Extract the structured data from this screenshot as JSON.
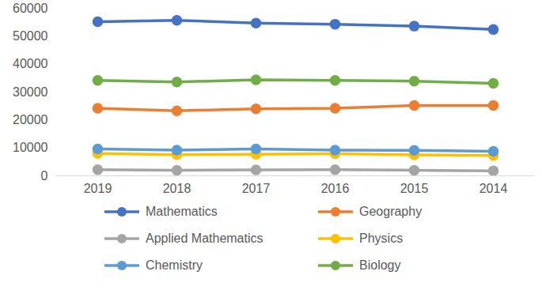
{
  "chart_data": {
    "type": "line",
    "categories": [
      "2019",
      "2018",
      "2017",
      "2016",
      "2015",
      "2014"
    ],
    "series": [
      {
        "name": "Mathematics",
        "color": "#4472c4",
        "values": [
          55200,
          55700,
          54700,
          54300,
          53600,
          52400
        ]
      },
      {
        "name": "Geography",
        "color": "#ed7d31",
        "values": [
          24200,
          23300,
          24000,
          24200,
          25200,
          25200
        ]
      },
      {
        "name": "Applied Mathematics",
        "color": "#a5a5a5",
        "values": [
          2200,
          2000,
          2100,
          2200,
          2000,
          1800
        ]
      },
      {
        "name": "Physics",
        "color": "#ffc000",
        "values": [
          8000,
          7600,
          7700,
          7900,
          7500,
          7300
        ]
      },
      {
        "name": "Chemistry",
        "color": "#5b9bd5",
        "values": [
          9600,
          9200,
          9600,
          9200,
          9100,
          8800
        ]
      },
      {
        "name": "Biology",
        "color": "#70ad47",
        "values": [
          34200,
          33600,
          34400,
          34200,
          33900,
          33100
        ]
      }
    ],
    "ylim": [
      0,
      60000
    ],
    "yticks": [
      0,
      10000,
      20000,
      30000,
      40000,
      50000,
      60000
    ],
    "grid": false,
    "marker": "circle",
    "legend": "bottom"
  }
}
